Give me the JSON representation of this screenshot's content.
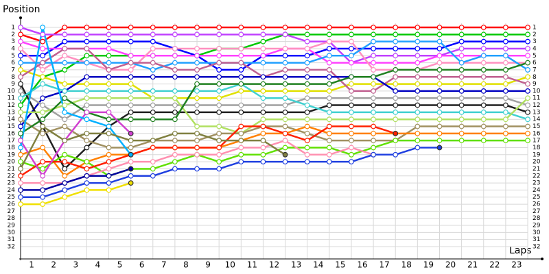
{
  "chart_data": {
    "type": "line",
    "y_label": "Position",
    "x_label": "Laps",
    "x": [
      0,
      1,
      2,
      3,
      4,
      5,
      6,
      7,
      8,
      9,
      10,
      11,
      12,
      13,
      14,
      15,
      16,
      17,
      18,
      19,
      20,
      21,
      22,
      23
    ],
    "xlim": [
      0,
      23
    ],
    "xticks": [
      1,
      2,
      3,
      4,
      5,
      6,
      7,
      8,
      9,
      10,
      11,
      12,
      13,
      14,
      15,
      16,
      17,
      18,
      19,
      20,
      21,
      22,
      23
    ],
    "ylim": [
      1,
      32
    ],
    "y_inverted": true,
    "yticks": [
      1,
      2,
      3,
      4,
      5,
      6,
      7,
      8,
      9,
      10,
      11,
      12,
      13,
      14,
      15,
      16,
      17,
      18,
      19,
      20,
      21,
      22,
      23,
      24,
      25,
      26,
      27,
      28,
      29,
      30,
      31,
      32
    ],
    "grid": true,
    "series": [
      {
        "color": "#ff0000",
        "values": [
          2,
          3,
          1,
          1,
          1,
          1,
          1,
          1,
          1,
          1,
          1,
          1,
          1,
          1,
          1,
          1,
          1,
          1,
          1,
          1,
          1,
          1,
          1,
          1
        ]
      },
      {
        "color": "#00c800",
        "values": [
          12,
          8,
          7,
          5,
          5,
          5,
          5,
          5,
          5,
          4,
          4,
          3,
          2,
          2,
          2,
          2,
          2,
          2,
          2,
          2,
          2,
          2,
          2,
          2
        ]
      },
      {
        "color": "#0000ff",
        "values": [
          5,
          5,
          3,
          3,
          3,
          3,
          3,
          4,
          5,
          7,
          7,
          5,
          5,
          5,
          4,
          4,
          4,
          4,
          4,
          4,
          3,
          3,
          3,
          3
        ]
      },
      {
        "color": "#c040ff",
        "values": [
          1,
          2,
          2,
          2,
          2,
          2,
          2,
          2,
          2,
          2,
          2,
          2,
          2,
          3,
          3,
          6,
          5,
          5,
          5,
          5,
          4,
          4,
          4,
          4
        ]
      },
      {
        "color": "#ff40ff",
        "values": [
          3,
          4,
          4,
          4,
          4,
          5,
          5,
          5,
          5,
          5,
          5,
          5,
          4,
          4,
          6,
          6,
          6,
          6,
          6,
          5,
          5,
          5,
          5,
          5
        ]
      },
      {
        "color": "#ff90c0",
        "values": [
          4,
          7,
          5,
          6,
          7,
          7,
          4,
          4,
          4,
          4,
          4,
          4,
          4,
          4,
          3,
          3,
          7,
          7,
          7,
          6,
          6,
          6,
          6,
          6
        ]
      },
      {
        "color": "#20a0ff",
        "values": [
          6,
          6,
          6,
          6,
          6,
          6,
          7,
          6,
          6,
          6,
          6,
          6,
          6,
          6,
          5,
          5,
          3,
          3,
          3,
          3,
          6,
          5,
          5,
          7
        ]
      },
      {
        "color": "#e0e000",
        "values": [
          7,
          8,
          9,
          9,
          9,
          9,
          11,
          11,
          11,
          11,
          10,
          10,
          10,
          10,
          10,
          9,
          9,
          9,
          9,
          9,
          9,
          9,
          9,
          8
        ]
      },
      {
        "color": "#c06090",
        "values": [
          8,
          6,
          4,
          4,
          7,
          6,
          6,
          7,
          7,
          6,
          6,
          8,
          7,
          7,
          7,
          10,
          10,
          8,
          8,
          8,
          8,
          8,
          8,
          9
        ]
      },
      {
        "color": "#0000c0",
        "values": [
          15,
          11,
          10,
          8,
          8,
          8,
          8,
          8,
          8,
          8,
          8,
          8,
          8,
          8,
          8,
          8,
          8,
          10,
          10,
          10,
          10,
          10,
          10,
          10
        ]
      },
      {
        "color": "#a0a0a0",
        "values": [
          10,
          12,
          14,
          12,
          12,
          12,
          12,
          12,
          12,
          12,
          12,
          12,
          12,
          11,
          11,
          11,
          11,
          11,
          11,
          11,
          11,
          11,
          11,
          12
        ]
      },
      {
        "color": "#202020",
        "values": [
          9,
          15,
          21,
          18,
          15,
          13,
          13,
          13,
          13,
          13,
          13,
          13,
          13,
          13,
          12,
          12,
          12,
          12,
          12,
          12,
          12,
          12,
          12,
          13
        ]
      },
      {
        "color": "#40d0d0",
        "values": [
          11,
          9,
          10,
          10,
          10,
          10,
          10,
          10,
          10,
          10,
          9,
          11,
          11,
          12,
          13,
          13,
          13,
          13,
          13,
          13,
          13,
          13,
          13,
          14
        ]
      },
      {
        "color": "#b0e060",
        "values": [
          13,
          13,
          12,
          11,
          11,
          11,
          11,
          11,
          15,
          15,
          16,
          14,
          14,
          14,
          14,
          14,
          14,
          14,
          14,
          14,
          14,
          14,
          14,
          11
        ]
      },
      {
        "color": "#a09060",
        "values": [
          14,
          16,
          15,
          17,
          18,
          18,
          17,
          17,
          17,
          16,
          16,
          15,
          15,
          16,
          17,
          17,
          17,
          17,
          15,
          15,
          15,
          15,
          15,
          15
        ]
      },
      {
        "color": "#ff8000",
        "values": [
          19,
          18,
          22,
          20,
          19,
          19,
          18,
          18,
          18,
          18,
          17,
          16,
          16,
          15,
          16,
          16,
          16,
          16,
          16,
          16,
          16,
          16,
          16,
          16
        ]
      },
      {
        "color": "#208020",
        "values": [
          16,
          14,
          11,
          13,
          14,
          14,
          14,
          14,
          9,
          9,
          9,
          9,
          9,
          9,
          9,
          8,
          8,
          7,
          7,
          7,
          7,
          7,
          7,
          6
        ]
      },
      {
        "color": "#60e000",
        "values": [
          20,
          21,
          19,
          20,
          22,
          21,
          21,
          20,
          19,
          20,
          19,
          19,
          18,
          18,
          18,
          19,
          18,
          17,
          17,
          17,
          17,
          17,
          17,
          17
        ]
      },
      {
        "color": "#ff2000",
        "values": [
          22,
          20,
          20,
          21,
          20,
          19,
          18,
          18,
          18,
          18,
          15,
          15,
          16,
          17,
          15,
          15,
          15,
          16,
          null,
          null,
          null,
          null,
          null,
          null
        ]
      },
      {
        "color": "#ff90b0",
        "values": [
          23,
          23,
          23,
          22,
          21,
          20,
          20,
          19,
          19,
          19,
          18,
          18,
          17,
          19,
          19,
          18,
          19,
          null,
          null,
          null,
          null,
          null,
          null,
          null
        ]
      },
      {
        "color": "#2040e0",
        "values": [
          25,
          25,
          24,
          23,
          23,
          22,
          22,
          21,
          21,
          21,
          20,
          20,
          20,
          20,
          20,
          20,
          19,
          19,
          18,
          18,
          null,
          null,
          null,
          null
        ]
      },
      {
        "color": "#0000a0",
        "values": [
          24,
          24,
          23,
          22,
          22,
          21,
          null,
          null,
          null,
          null,
          null,
          null,
          null,
          null,
          null,
          null,
          null,
          null,
          null,
          null,
          null,
          null,
          null,
          null
        ]
      },
      {
        "color": "#f0e000",
        "values": [
          26,
          26,
          25,
          24,
          24,
          23,
          null,
          null,
          null,
          null,
          null,
          null,
          null,
          null,
          null,
          null,
          null,
          null,
          null,
          null,
          null,
          null,
          null,
          null
        ]
      },
      {
        "color": "#d040d0",
        "values": [
          17,
          22,
          17,
          13,
          13,
          16,
          null,
          null,
          null,
          null,
          null,
          null,
          null,
          null,
          null,
          null,
          null,
          null,
          null,
          null,
          null,
          null,
          null,
          null
        ]
      },
      {
        "color": "#00b0ff",
        "values": [
          18,
          1,
          13,
          14,
          15,
          19,
          null,
          null,
          null,
          null,
          null,
          null,
          null,
          null,
          null,
          null,
          null,
          null,
          null,
          null,
          null,
          null,
          null,
          null
        ]
      },
      {
        "color": "#808040",
        "values": [
          21,
          15,
          17,
          16,
          16,
          17,
          17,
          16,
          16,
          17,
          17,
          17,
          19,
          null,
          null,
          null,
          null,
          null,
          null,
          null,
          null,
          null,
          null,
          null
        ]
      }
    ]
  }
}
